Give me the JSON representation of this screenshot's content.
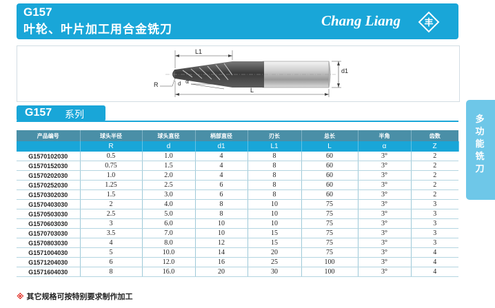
{
  "header": {
    "code": "G157",
    "name": "叶轮、叶片加工用合金铣刀",
    "brand": "Chang Liang",
    "logo_glyph": "丰"
  },
  "side_tab": {
    "label": "多功能铣刀"
  },
  "drawing": {
    "labels": {
      "L1": "L1",
      "d1": "d1",
      "R": "R",
      "alpha": "α",
      "d": "d",
      "L": "L"
    }
  },
  "series": {
    "code": "G157",
    "word": "系列"
  },
  "table": {
    "headers": [
      "产品编号",
      "球头半径",
      "球头直径",
      "柄部直径",
      "刃长",
      "总长",
      "半角",
      "齿数"
    ],
    "symbols": [
      "",
      "R",
      "d",
      "d1",
      "L1",
      "L",
      "α",
      "Z"
    ],
    "rows": [
      [
        "G1570102030",
        "0.5",
        "1.0",
        "4",
        "8",
        "60",
        "3°",
        "2"
      ],
      [
        "G1570152030",
        "0.75",
        "1.5",
        "4",
        "8",
        "60",
        "3°",
        "2"
      ],
      [
        "G1570202030",
        "1.0",
        "2.0",
        "4",
        "8",
        "60",
        "3°",
        "2"
      ],
      [
        "G1570252030",
        "1.25",
        "2.5",
        "6",
        "8",
        "60",
        "3°",
        "2"
      ],
      [
        "G1570302030",
        "1.5",
        "3.0",
        "6",
        "8",
        "60",
        "3°",
        "2"
      ],
      [
        "G1570403030",
        "2",
        "4.0",
        "8",
        "10",
        "75",
        "3°",
        "3"
      ],
      [
        "G1570503030",
        "2.5",
        "5.0",
        "8",
        "10",
        "75",
        "3°",
        "3"
      ],
      [
        "G1570603030",
        "3",
        "6.0",
        "10",
        "10",
        "75",
        "3°",
        "3"
      ],
      [
        "G1570703030",
        "3.5",
        "7.0",
        "10",
        "15",
        "75",
        "3°",
        "3"
      ],
      [
        "G1570803030",
        "4",
        "8.0",
        "12",
        "15",
        "75",
        "3°",
        "3"
      ],
      [
        "G1571004030",
        "5",
        "10.0",
        "14",
        "20",
        "75",
        "3°",
        "4"
      ],
      [
        "G1571204030",
        "6",
        "12.0",
        "16",
        "25",
        "100",
        "3°",
        "4"
      ],
      [
        "G1571604030",
        "8",
        "16.0",
        "20",
        "30",
        "100",
        "3°",
        "4"
      ]
    ]
  },
  "footnote": {
    "mark": "※",
    "text": "其它规格可按特别要求制作加工"
  },
  "colors": {
    "brand_blue": "#19a6d8",
    "header_dark": "#4a8fa7",
    "side_tab": "#6ec7e8",
    "note_red": "#e0261c"
  }
}
